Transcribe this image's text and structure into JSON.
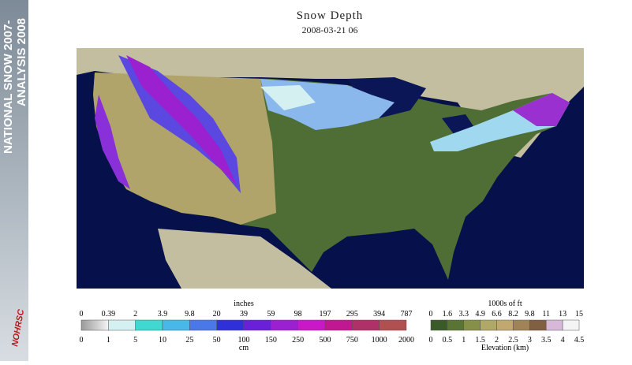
{
  "sidebar": {
    "line1": "NATIONAL SNOW 2007-",
    "line2": "ANALYSIS 2008",
    "logo": "NOHRSC"
  },
  "header": {
    "title": "Snow Depth",
    "timestamp": "2008-03-21 06"
  },
  "snow_legend": {
    "top_label": "inches",
    "bottom_label": "cm",
    "top_ticks": [
      0,
      0.39,
      2,
      3.9,
      9.8,
      20,
      39,
      59,
      98,
      197,
      295,
      394,
      787
    ],
    "bottom_ticks": [
      0,
      1,
      5,
      10,
      25,
      50,
      100,
      150,
      250,
      500,
      750,
      1000,
      2000
    ],
    "colors": [
      "#c8c8c8",
      "#d4f0f0",
      "#40d8d0",
      "#48b8e8",
      "#4a78e8",
      "#3030d8",
      "#6a20d8",
      "#9a20d0",
      "#c818c8",
      "#c01890",
      "#b03068",
      "#b05050"
    ]
  },
  "elevation_legend": {
    "top_label": "1000s of ft",
    "bottom_label": "Elevation (km)",
    "top_ticks": [
      0,
      1.6,
      3.3,
      4.9,
      6.6,
      8.2,
      9.8,
      11,
      13,
      15
    ],
    "bottom_ticks": [
      0,
      0.5,
      1,
      1.5,
      2,
      2.5,
      3,
      3.5,
      4,
      4.5
    ],
    "colors": [
      "#3a5a28",
      "#5a7434",
      "#869048",
      "#b0a866",
      "#c0a870",
      "#a08458",
      "#806040",
      "#d8b8d8",
      "#f4f4f4"
    ]
  }
}
